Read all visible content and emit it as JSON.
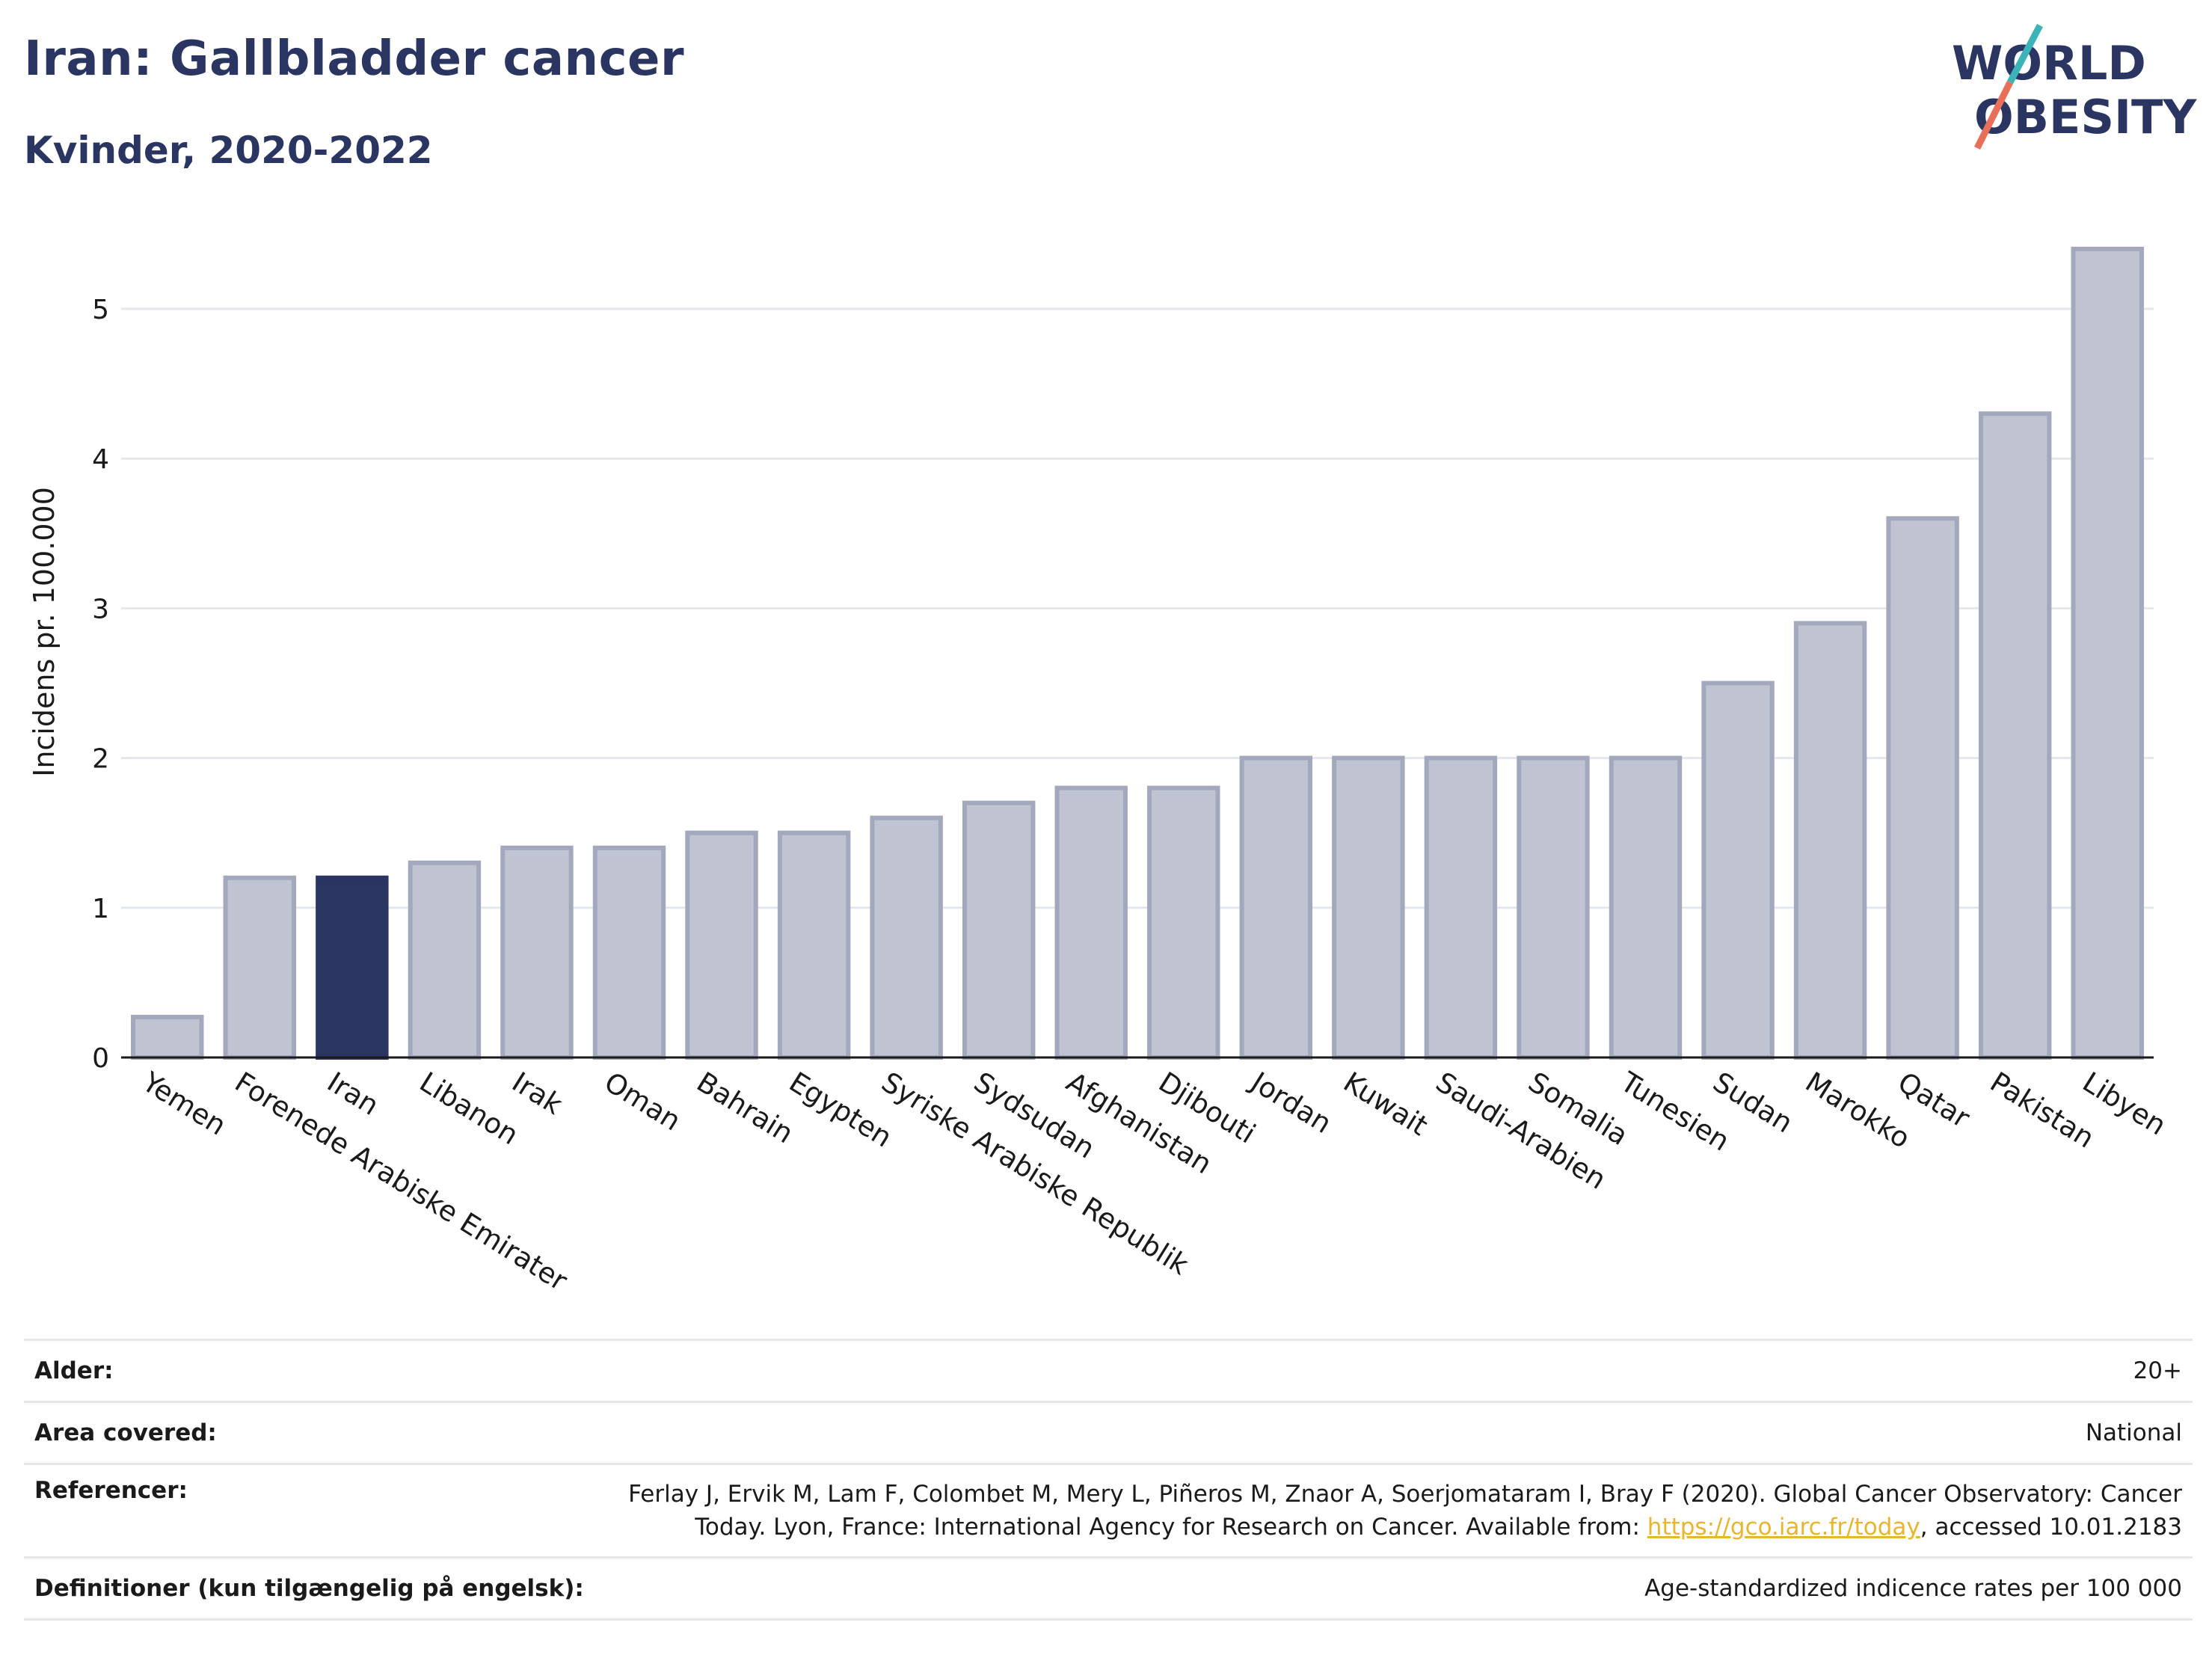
{
  "header": {
    "title": "Iran: Gallbladder cancer",
    "subtitle": "Kvinder, 2020-2022"
  },
  "logo": {
    "line1": "WORLD",
    "line2": "OBESITY",
    "accent_teal": "#3bb3b8",
    "accent_red": "#e8705a",
    "text_color": "#2b3561"
  },
  "colors": {
    "bar_default": "#c0c3d1",
    "bar_default_stroke": "#a3a8bd",
    "bar_highlight": "#2b3561",
    "grid": "#e4e7ec",
    "axis": "#1a1a1a"
  },
  "chart_data": {
    "type": "bar",
    "title": "Iran: Gallbladder cancer",
    "subtitle": "Kvinder, 2020-2022",
    "ylabel": "Incidens pr. 100.000",
    "xlabel": "",
    "ylim": [
      0,
      5.5
    ],
    "yticks": [
      0,
      1,
      2,
      3,
      4,
      5
    ],
    "grid": true,
    "highlight": "Iran",
    "categories": [
      "Yemen",
      "Forenede Arabiske Emirater",
      "Iran",
      "Libanon",
      "Irak",
      "Oman",
      "Bahrain",
      "Egypten",
      "Syriske Arabiske Republik",
      "Sydsudan",
      "Afghanistan",
      "Djibouti",
      "Jordan",
      "Kuwait",
      "Saudi-Arabien",
      "Somalia",
      "Tunesien",
      "Sudan",
      "Marokko",
      "Qatar",
      "Pakistan",
      "Libyen"
    ],
    "values": [
      0.27,
      1.2,
      1.2,
      1.3,
      1.4,
      1.4,
      1.5,
      1.5,
      1.6,
      1.7,
      1.8,
      1.8,
      2.0,
      2.0,
      2.0,
      2.0,
      2.0,
      2.5,
      2.9,
      3.6,
      4.3,
      5.4
    ]
  },
  "info": [
    {
      "label": "Alder:",
      "value": "20+"
    },
    {
      "label": "Area covered:",
      "value": "National"
    },
    {
      "label": "Referencer:",
      "value_pre": "Ferlay J, Ervik M, Lam F, Colombet M, Mery L, Piñeros M, Znaor A, Soerjomataram I, Bray F (2020). Global Cancer Observatory: Cancer Today. Lyon, France: International Agency for Research on Cancer. Available from: ",
      "link": "https://gco.iarc.fr/today",
      "value_post": ", accessed 10.01.2183"
    },
    {
      "label": "Definitioner (kun tilgængelig på engelsk):",
      "value": "Age-standardized indicence rates per 100 000"
    }
  ]
}
